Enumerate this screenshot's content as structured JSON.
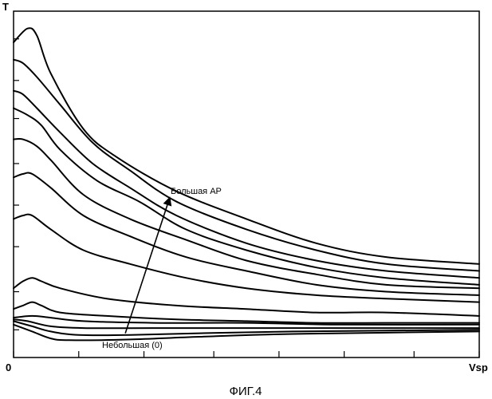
{
  "chart_data": {
    "type": "line",
    "y_axis_label": "T",
    "x_axis_label": "Vsp",
    "origin_label": "0",
    "annotation_high": "Большая AP",
    "annotation_low": "Небольшая (0)",
    "caption": "ФИГ.4",
    "x_ticks": [
      0,
      0.14,
      0.28,
      0.43,
      0.57,
      0.71,
      0.86,
      1.0
    ],
    "y_ticks": [
      0.08,
      0.19,
      0.32,
      0.44,
      0.56,
      0.69,
      0.8,
      0.92
    ],
    "series": [
      {
        "points": [
          [
            0,
            0.91
          ],
          [
            0.03,
            0.95
          ],
          [
            0.05,
            0.93
          ],
          [
            0.08,
            0.82
          ],
          [
            0.15,
            0.66
          ],
          [
            0.22,
            0.58
          ],
          [
            0.35,
            0.48
          ],
          [
            0.5,
            0.4
          ],
          [
            0.65,
            0.33
          ],
          [
            0.8,
            0.29
          ],
          [
            1.0,
            0.27
          ]
        ]
      },
      {
        "points": [
          [
            0,
            0.86
          ],
          [
            0.02,
            0.85
          ],
          [
            0.05,
            0.81
          ],
          [
            0.1,
            0.73
          ],
          [
            0.17,
            0.62
          ],
          [
            0.25,
            0.54
          ],
          [
            0.35,
            0.45
          ],
          [
            0.5,
            0.37
          ],
          [
            0.65,
            0.31
          ],
          [
            0.8,
            0.27
          ],
          [
            1.0,
            0.25
          ]
        ]
      },
      {
        "points": [
          [
            0,
            0.77
          ],
          [
            0.02,
            0.76
          ],
          [
            0.05,
            0.72
          ],
          [
            0.1,
            0.65
          ],
          [
            0.17,
            0.56
          ],
          [
            0.25,
            0.49
          ],
          [
            0.35,
            0.41
          ],
          [
            0.5,
            0.33
          ],
          [
            0.65,
            0.28
          ],
          [
            0.8,
            0.25
          ],
          [
            1.0,
            0.23
          ]
        ]
      },
      {
        "points": [
          [
            0,
            0.72
          ],
          [
            0.03,
            0.7
          ],
          [
            0.06,
            0.67
          ],
          [
            0.1,
            0.6
          ],
          [
            0.18,
            0.51
          ],
          [
            0.27,
            0.45
          ],
          [
            0.37,
            0.37
          ],
          [
            0.5,
            0.31
          ],
          [
            0.65,
            0.26
          ],
          [
            0.8,
            0.23
          ],
          [
            1.0,
            0.21
          ]
        ]
      },
      {
        "points": [
          [
            0,
            0.63
          ],
          [
            0.02,
            0.63
          ],
          [
            0.05,
            0.61
          ],
          [
            0.08,
            0.57
          ],
          [
            0.15,
            0.47
          ],
          [
            0.25,
            0.4
          ],
          [
            0.37,
            0.34
          ],
          [
            0.5,
            0.28
          ],
          [
            0.65,
            0.24
          ],
          [
            0.8,
            0.21
          ],
          [
            1.0,
            0.2
          ]
        ]
      },
      {
        "points": [
          [
            0,
            0.52
          ],
          [
            0.02,
            0.53
          ],
          [
            0.04,
            0.53
          ],
          [
            0.08,
            0.49
          ],
          [
            0.15,
            0.41
          ],
          [
            0.25,
            0.35
          ],
          [
            0.37,
            0.29
          ],
          [
            0.5,
            0.25
          ],
          [
            0.65,
            0.21
          ],
          [
            0.8,
            0.19
          ],
          [
            1.0,
            0.18
          ]
        ]
      },
      {
        "points": [
          [
            0,
            0.4
          ],
          [
            0.02,
            0.41
          ],
          [
            0.04,
            0.41
          ],
          [
            0.08,
            0.37
          ],
          [
            0.15,
            0.31
          ],
          [
            0.25,
            0.27
          ],
          [
            0.37,
            0.23
          ],
          [
            0.5,
            0.2
          ],
          [
            0.65,
            0.18
          ],
          [
            0.8,
            0.17
          ],
          [
            1.0,
            0.16
          ]
        ]
      },
      {
        "points": [
          [
            0,
            0.2
          ],
          [
            0.02,
            0.22
          ],
          [
            0.04,
            0.23
          ],
          [
            0.06,
            0.22
          ],
          [
            0.1,
            0.2
          ],
          [
            0.2,
            0.17
          ],
          [
            0.35,
            0.15
          ],
          [
            0.5,
            0.14
          ],
          [
            0.65,
            0.13
          ],
          [
            0.8,
            0.13
          ],
          [
            1.0,
            0.12
          ]
        ]
      },
      {
        "points": [
          [
            0,
            0.14
          ],
          [
            0.02,
            0.15
          ],
          [
            0.04,
            0.16
          ],
          [
            0.06,
            0.15
          ],
          [
            0.1,
            0.13
          ],
          [
            0.2,
            0.12
          ],
          [
            0.35,
            0.11
          ],
          [
            0.5,
            0.105
          ],
          [
            0.65,
            0.1
          ],
          [
            0.8,
            0.1
          ],
          [
            1.0,
            0.1
          ]
        ]
      },
      {
        "points": [
          [
            0,
            0.115
          ],
          [
            0.04,
            0.12
          ],
          [
            0.08,
            0.115
          ],
          [
            0.15,
            0.105
          ],
          [
            0.3,
            0.1
          ],
          [
            0.5,
            0.1
          ],
          [
            0.7,
            0.095
          ],
          [
            1.0,
            0.095
          ]
        ]
      },
      {
        "points": [
          [
            0,
            0.11
          ],
          [
            0.03,
            0.105
          ],
          [
            0.08,
            0.09
          ],
          [
            0.15,
            0.085
          ],
          [
            0.3,
            0.085
          ],
          [
            0.5,
            0.085
          ],
          [
            0.7,
            0.085
          ],
          [
            1.0,
            0.085
          ]
        ]
      },
      {
        "points": [
          [
            0,
            0.105
          ],
          [
            0.04,
            0.09
          ],
          [
            0.08,
            0.075
          ],
          [
            0.14,
            0.065
          ],
          [
            0.25,
            0.065
          ],
          [
            0.4,
            0.07
          ],
          [
            0.6,
            0.075
          ],
          [
            1.0,
            0.08
          ]
        ]
      },
      {
        "points": [
          [
            0,
            0.095
          ],
          [
            0.04,
            0.075
          ],
          [
            0.08,
            0.055
          ],
          [
            0.12,
            0.05
          ],
          [
            0.25,
            0.052
          ],
          [
            0.4,
            0.06
          ],
          [
            0.6,
            0.068
          ],
          [
            1.0,
            0.075
          ]
        ]
      }
    ],
    "arrow": {
      "from": [
        0.24,
        0.07
      ],
      "to": [
        0.335,
        0.46
      ]
    }
  }
}
